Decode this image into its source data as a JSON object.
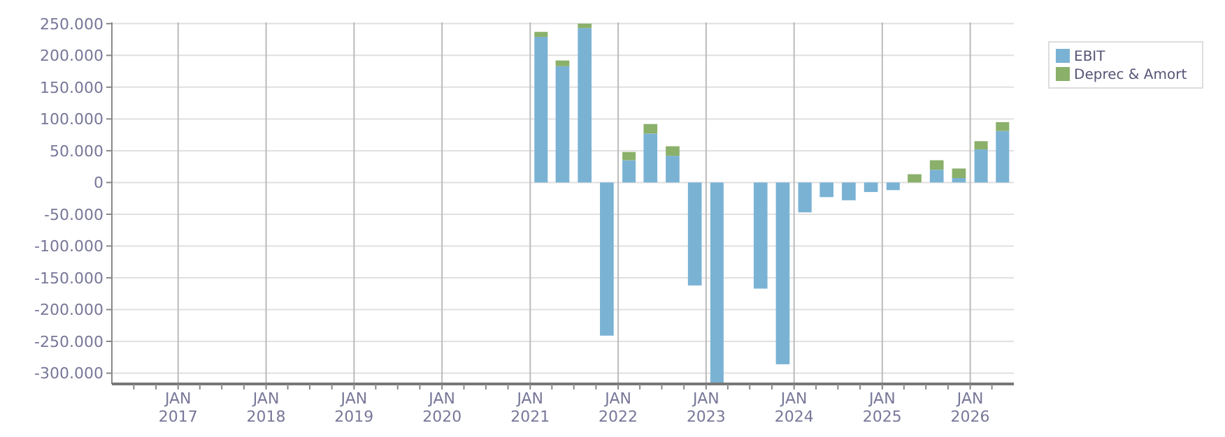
{
  "chart_data": {
    "type": "bar",
    "stacked": true,
    "x": [
      "2021-02-15",
      "2021-05-15",
      "2021-08-15",
      "2021-11-15",
      "2022-02-15",
      "2022-05-15",
      "2022-08-15",
      "2022-11-15",
      "2023-02-15",
      "2023-05-15",
      "2023-08-15",
      "2023-11-15",
      "2024-02-15",
      "2024-05-15",
      "2024-08-15",
      "2024-11-15",
      "2025-02-15",
      "2025-05-15",
      "2025-08-15",
      "2025-11-15",
      "2026-02-15",
      "2026-05-15"
    ],
    "series": [
      {
        "name": "EBIT",
        "color": "#7ab2d4",
        "values": [
          229000,
          183000,
          243000,
          -241000,
          35000,
          77000,
          42000,
          -162000,
          -315000,
          null,
          -167000,
          -286000,
          -47000,
          -23000,
          -28000,
          -15000,
          -12000,
          null,
          20000,
          7000,
          52000,
          81000
        ]
      },
      {
        "name": "Deprec & Amort",
        "color": "#8ab06a",
        "values": [
          8000,
          9000,
          7000,
          null,
          13000,
          15000,
          15000,
          null,
          null,
          null,
          null,
          null,
          null,
          null,
          null,
          null,
          null,
          13000,
          15000,
          15000,
          13000,
          14000
        ]
      }
    ],
    "xlim": [
      "2016-04-01",
      "2026-07-01"
    ],
    "xticks": [
      {
        "value": "2016-07-01",
        "label": null
      },
      {
        "value": "2016-10-01",
        "label": null
      },
      {
        "value": "2017-01-01",
        "label": "JAN\n2017"
      },
      {
        "value": "2017-04-01",
        "label": null
      },
      {
        "value": "2017-07-01",
        "label": null
      },
      {
        "value": "2017-10-01",
        "label": null
      },
      {
        "value": "2018-01-01",
        "label": "JAN\n2018"
      },
      {
        "value": "2018-04-01",
        "label": null
      },
      {
        "value": "2018-07-01",
        "label": null
      },
      {
        "value": "2018-10-01",
        "label": null
      },
      {
        "value": "2019-01-01",
        "label": "JAN\n2019"
      },
      {
        "value": "2019-04-01",
        "label": null
      },
      {
        "value": "2019-07-01",
        "label": null
      },
      {
        "value": "2019-10-01",
        "label": null
      },
      {
        "value": "2020-01-01",
        "label": "JAN\n2020"
      },
      {
        "value": "2020-04-01",
        "label": null
      },
      {
        "value": "2020-07-01",
        "label": null
      },
      {
        "value": "2020-10-01",
        "label": null
      },
      {
        "value": "2021-01-01",
        "label": "JAN\n2021"
      },
      {
        "value": "2021-04-01",
        "label": null
      },
      {
        "value": "2021-07-01",
        "label": null
      },
      {
        "value": "2021-10-01",
        "label": null
      },
      {
        "value": "2022-01-01",
        "label": "JAN\n2022"
      },
      {
        "value": "2022-04-01",
        "label": null
      },
      {
        "value": "2022-07-01",
        "label": null
      },
      {
        "value": "2022-10-01",
        "label": null
      },
      {
        "value": "2023-01-01",
        "label": "JAN\n2023"
      },
      {
        "value": "2023-04-01",
        "label": null
      },
      {
        "value": "2023-07-01",
        "label": null
      },
      {
        "value": "2023-10-01",
        "label": null
      },
      {
        "value": "2024-01-01",
        "label": "JAN\n2024"
      },
      {
        "value": "2024-04-01",
        "label": null
      },
      {
        "value": "2024-07-01",
        "label": null
      },
      {
        "value": "2024-10-01",
        "label": null
      },
      {
        "value": "2025-01-01",
        "label": "JAN\n2025"
      },
      {
        "value": "2025-04-01",
        "label": null
      },
      {
        "value": "2025-07-01",
        "label": null
      },
      {
        "value": "2025-10-01",
        "label": null
      },
      {
        "value": "2026-01-01",
        "label": "JAN\n2026"
      },
      {
        "value": "2026-04-01",
        "label": null
      }
    ],
    "ylim": [
      -317000,
      252000
    ],
    "yticks": [
      {
        "value": -300000,
        "label": "-300.000"
      },
      {
        "value": -250000,
        "label": "-250.000"
      },
      {
        "value": -200000,
        "label": "-200.000"
      },
      {
        "value": -150000,
        "label": "-150.000"
      },
      {
        "value": -100000,
        "label": "-100.000"
      },
      {
        "value": -50000,
        "label": "-50.000"
      },
      {
        "value": 0,
        "label": "0"
      },
      {
        "value": 50000,
        "label": "50.000"
      },
      {
        "value": 100000,
        "label": "100.000"
      },
      {
        "value": 150000,
        "label": "150.000"
      },
      {
        "value": 200000,
        "label": "200.000"
      },
      {
        "value": 250000,
        "label": "250.000"
      }
    ],
    "grid": true,
    "legend": "top right"
  }
}
